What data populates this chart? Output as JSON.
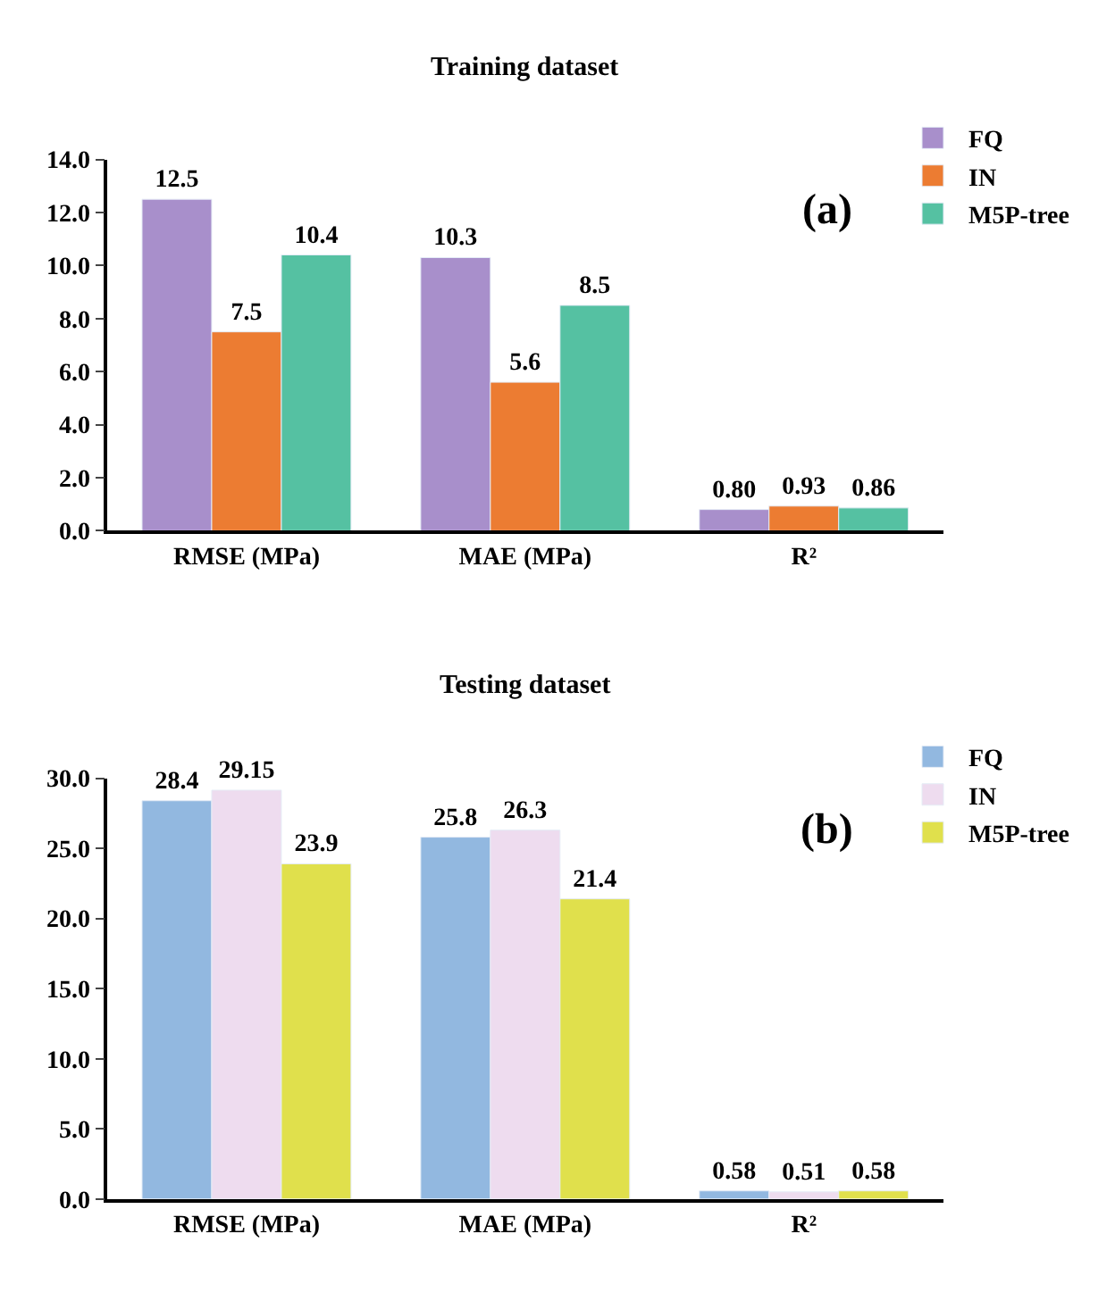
{
  "chart_data": [
    {
      "type": "bar",
      "title": "Training dataset",
      "categories": [
        "RMSE (MPa)",
        "MAE (MPa)",
        "R²"
      ],
      "series": [
        {
          "name": "FQ",
          "color": "#a88fcb",
          "values": [
            12.5,
            10.3,
            0.8
          ],
          "value_labels": [
            "12.5",
            "10.3",
            "0.80"
          ]
        },
        {
          "name": "IN",
          "color": "#ec7c32",
          "values": [
            7.5,
            5.6,
            0.93
          ],
          "value_labels": [
            "7.5",
            "5.6",
            "0.93"
          ]
        },
        {
          "name": "M5P-tree",
          "color": "#55c1a2",
          "values": [
            10.4,
            8.5,
            0.86
          ],
          "value_labels": [
            "10.4",
            "8.5",
            "0.86"
          ]
        }
      ],
      "ylim": [
        0,
        14
      ],
      "yticks": [
        {
          "value": 0,
          "label": "0.0"
        },
        {
          "value": 2,
          "label": "2.0"
        },
        {
          "value": 4,
          "label": "4.0"
        },
        {
          "value": 6,
          "label": "6.0"
        },
        {
          "value": 8,
          "label": "8.0"
        },
        {
          "value": 10,
          "label": "10.0"
        },
        {
          "value": 12,
          "label": "12.0"
        },
        {
          "value": 14,
          "label": "14.0"
        }
      ],
      "annotations": [
        "(a)"
      ],
      "legend": "top right"
    },
    {
      "type": "bar",
      "title": "Testing dataset",
      "categories": [
        "RMSE (MPa)",
        "MAE (MPa)",
        "R²"
      ],
      "series": [
        {
          "name": "FQ",
          "color": "#92b8e0",
          "values": [
            28.4,
            25.8,
            0.58
          ],
          "value_labels": [
            "28.4",
            "25.8",
            "0.58"
          ]
        },
        {
          "name": "IN",
          "color": "#eedcef",
          "values": [
            29.15,
            26.3,
            0.51
          ],
          "value_labels": [
            "29.15",
            "26.3",
            "0.51"
          ]
        },
        {
          "name": "M5P-tree",
          "color": "#e0e04c",
          "values": [
            23.9,
            21.4,
            0.58
          ],
          "value_labels": [
            "23.9",
            "21.4",
            "0.58"
          ]
        }
      ],
      "ylim": [
        0,
        30
      ],
      "yticks": [
        {
          "value": 0,
          "label": "0.0"
        },
        {
          "value": 5,
          "label": "5.0"
        },
        {
          "value": 10,
          "label": "10.0"
        },
        {
          "value": 15,
          "label": "15.0"
        },
        {
          "value": 20,
          "label": "20.0"
        },
        {
          "value": 25,
          "label": "25.0"
        },
        {
          "value": 30,
          "label": "30.0"
        }
      ],
      "annotations": [
        "(b)"
      ],
      "legend": "top right"
    }
  ]
}
